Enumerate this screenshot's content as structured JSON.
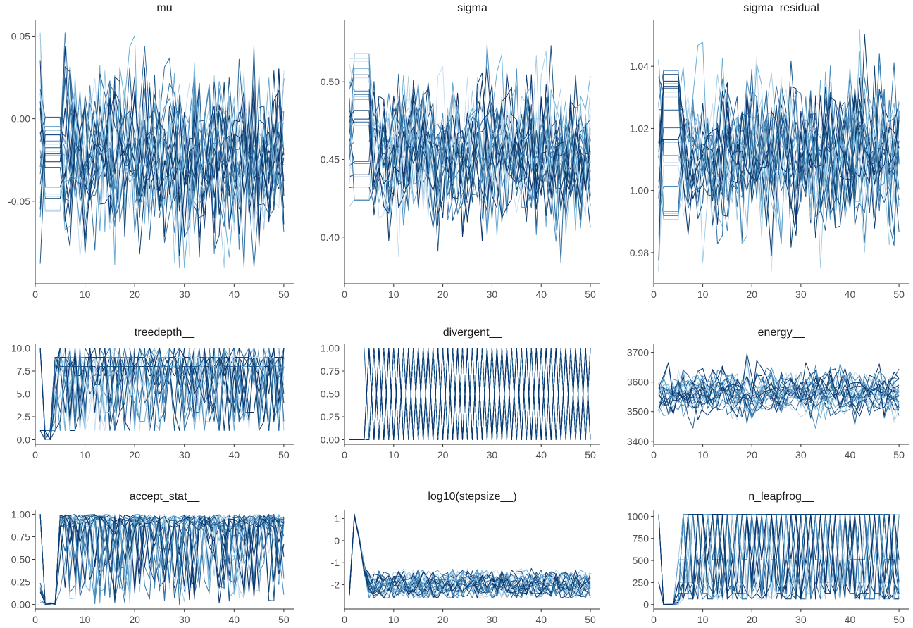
{
  "figure": {
    "palette": [
      "#c6dbef",
      "#9ecae1",
      "#6baed6",
      "#4a8bbd",
      "#2f6fa3",
      "#1f5a8c",
      "#0d3f6e",
      "#08306b"
    ],
    "n_iterations": 50,
    "n_chains": 24
  },
  "chart_data": [
    {
      "type": "line",
      "title": "mu",
      "xlim": [
        0,
        52
      ],
      "ylim": [
        -0.1,
        0.06
      ],
      "xticks": [
        0,
        10,
        20,
        30,
        40,
        50
      ],
      "xtick_labels": [
        "0",
        "10",
        "20",
        "30",
        "40",
        "50"
      ],
      "yticks": [
        -0.05,
        0.0,
        0.05
      ],
      "ytick_labels": [
        "-0.05",
        "0.00",
        "0.05"
      ],
      "trace": {
        "kind": "continuous",
        "warmup": {
          "min": -0.057,
          "max": 0.003
        },
        "center": -0.023,
        "spread": 0.025,
        "min": -0.09,
        "max": 0.052
      },
      "grid": false,
      "legend": "none"
    },
    {
      "type": "line",
      "title": "sigma",
      "xlim": [
        0,
        52
      ],
      "ylim": [
        0.37,
        0.54
      ],
      "xticks": [
        0,
        10,
        20,
        30,
        40,
        50
      ],
      "xtick_labels": [
        "0",
        "10",
        "20",
        "30",
        "40",
        "50"
      ],
      "yticks": [
        0.4,
        0.45,
        0.5
      ],
      "ytick_labels": [
        "0.40",
        "0.45",
        "0.50"
      ],
      "trace": {
        "kind": "continuous",
        "warmup": {
          "min": 0.41,
          "max": 0.52
        },
        "center": 0.455,
        "spread": 0.022,
        "min": 0.38,
        "max": 0.533
      },
      "grid": false,
      "legend": "none"
    },
    {
      "type": "line",
      "title": "sigma_residual",
      "xlim": [
        0,
        52
      ],
      "ylim": [
        0.97,
        1.055
      ],
      "xticks": [
        0,
        10,
        20,
        30,
        40,
        50
      ],
      "xtick_labels": [
        "0",
        "10",
        "20",
        "30",
        "40",
        "50"
      ],
      "yticks": [
        0.98,
        1.0,
        1.02,
        1.04
      ],
      "ytick_labels": [
        "0.98",
        "1.00",
        "1.02",
        "1.04"
      ],
      "trace": {
        "kind": "continuous",
        "warmup": {
          "min": 0.99,
          "max": 1.04
        },
        "center": 1.012,
        "spread": 0.012,
        "min": 0.974,
        "max": 1.053
      },
      "grid": false,
      "legend": "none"
    },
    {
      "type": "line",
      "title": "treedepth__",
      "xlim": [
        0,
        52
      ],
      "ylim": [
        -0.5,
        10.5
      ],
      "xticks": [
        0,
        10,
        20,
        30,
        40,
        50
      ],
      "xtick_labels": [
        "0",
        "10",
        "20",
        "30",
        "40",
        "50"
      ],
      "yticks": [
        0.0,
        2.5,
        5.0,
        7.5,
        10.0
      ],
      "ytick_labels": [
        "0.0",
        "2.5",
        "5.0",
        "7.5",
        "10.0"
      ],
      "trace": {
        "kind": "treedepth",
        "min": 0,
        "max": 10
      },
      "grid": false,
      "legend": "none"
    },
    {
      "type": "line",
      "title": "divergent__",
      "xlim": [
        0,
        52
      ],
      "ylim": [
        -0.05,
        1.05
      ],
      "xticks": [
        0,
        10,
        20,
        30,
        40,
        50
      ],
      "xtick_labels": [
        "0",
        "10",
        "20",
        "30",
        "40",
        "50"
      ],
      "yticks": [
        0.0,
        0.25,
        0.5,
        0.75,
        1.0
      ],
      "ytick_labels": [
        "0.00",
        "0.25",
        "0.50",
        "0.75",
        "1.00"
      ],
      "trace": {
        "kind": "binary",
        "min": 0,
        "max": 1
      },
      "grid": false,
      "legend": "none"
    },
    {
      "type": "line",
      "title": "energy__",
      "xlim": [
        0,
        52
      ],
      "ylim": [
        3390,
        3730
      ],
      "xticks": [
        0,
        10,
        20,
        30,
        40,
        50
      ],
      "xtick_labels": [
        "0",
        "10",
        "20",
        "30",
        "40",
        "50"
      ],
      "yticks": [
        3400,
        3500,
        3600,
        3700
      ],
      "ytick_labels": [
        "3400",
        "3500",
        "3600",
        "3700"
      ],
      "trace": {
        "kind": "energy",
        "center": 3565,
        "spread": 40,
        "min": 3415,
        "max": 3700
      },
      "grid": false,
      "legend": "none"
    },
    {
      "type": "line",
      "title": "accept_stat__",
      "xlim": [
        0,
        52
      ],
      "ylim": [
        -0.05,
        1.05
      ],
      "xticks": [
        0,
        10,
        20,
        30,
        40,
        50
      ],
      "xtick_labels": [
        "0",
        "10",
        "20",
        "30",
        "40",
        "50"
      ],
      "yticks": [
        0.0,
        0.25,
        0.5,
        0.75,
        1.0
      ],
      "ytick_labels": [
        "0.00",
        "0.25",
        "0.50",
        "0.75",
        "1.00"
      ],
      "trace": {
        "kind": "accept",
        "min": 0,
        "max": 1
      },
      "grid": false,
      "legend": "none"
    },
    {
      "type": "line",
      "title": "log10(stepsize__)",
      "xlim": [
        0,
        52
      ],
      "ylim": [
        -3.1,
        1.4
      ],
      "xticks": [
        0,
        10,
        20,
        30,
        40,
        50
      ],
      "xtick_labels": [
        "0",
        "10",
        "20",
        "30",
        "40",
        "50"
      ],
      "yticks": [
        -2,
        -1,
        0,
        1
      ],
      "ytick_labels": [
        "-2",
        "-1",
        "0",
        "1"
      ],
      "trace": {
        "kind": "stepsize",
        "min": -2.6,
        "max": 1.2
      },
      "grid": false,
      "legend": "none"
    },
    {
      "type": "line",
      "title": "n_leapfrog__",
      "xlim": [
        0,
        52
      ],
      "ylim": [
        -50,
        1075
      ],
      "xticks": [
        0,
        10,
        20,
        30,
        40,
        50
      ],
      "xtick_labels": [
        "0",
        "10",
        "20",
        "30",
        "40",
        "50"
      ],
      "yticks": [
        0,
        250,
        500,
        750,
        1000
      ],
      "ytick_labels": [
        "0",
        "250",
        "500",
        "750",
        "1000"
      ],
      "trace": {
        "kind": "leapfrog",
        "levels": [
          1,
          3,
          7,
          15,
          31,
          63,
          127,
          255,
          511,
          1023
        ],
        "min": 0,
        "max": 1023
      },
      "grid": false,
      "legend": "none"
    }
  ]
}
